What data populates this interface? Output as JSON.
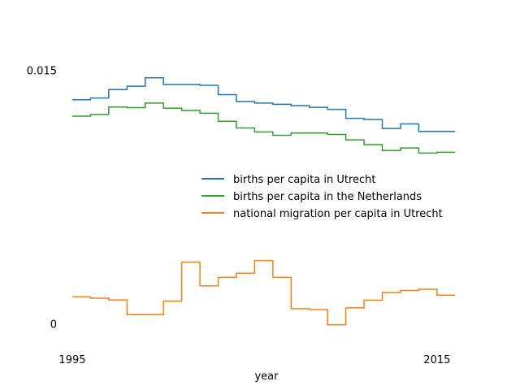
{
  "chart_data": {
    "type": "line",
    "step": "post",
    "xlabel": "year",
    "ylabel": "",
    "xlim": [
      1994.6,
      2016.7
    ],
    "ylim": [
      -0.00112,
      0.01636
    ],
    "x_ticks": [
      {
        "value": 1995,
        "label": "1995"
      },
      {
        "value": 2015,
        "label": "2015"
      }
    ],
    "y_ticks": [
      {
        "value": 0,
        "label": "0"
      },
      {
        "value": 0.015,
        "label": "0.015"
      }
    ],
    "grid": false,
    "legend_position": "center-right",
    "x": [
      1995,
      1996,
      1997,
      1998,
      1999,
      2000,
      2001,
      2002,
      2003,
      2004,
      2005,
      2006,
      2007,
      2008,
      2009,
      2010,
      2011,
      2012,
      2013,
      2014,
      2015,
      2016
    ],
    "series": [
      {
        "name": "births per capita in Utrecht",
        "color": "#1f77b4",
        "values": [
          0.01325,
          0.01335,
          0.01385,
          0.01405,
          0.01455,
          0.01415,
          0.01415,
          0.0141,
          0.01355,
          0.01315,
          0.01305,
          0.01298,
          0.0129,
          0.0128,
          0.01268,
          0.01215,
          0.01208,
          0.01155,
          0.01182,
          0.01138,
          0.01138,
          0.01138
        ]
      },
      {
        "name": "births per capita in the Netherlands",
        "color": "#2ca02c",
        "values": [
          0.01228,
          0.01238,
          0.01282,
          0.01278,
          0.01305,
          0.01275,
          0.01262,
          0.01245,
          0.01198,
          0.01158,
          0.01135,
          0.01115,
          0.01128,
          0.01128,
          0.0112,
          0.01088,
          0.0106,
          0.01025,
          0.0104,
          0.0101,
          0.01015,
          0.01015
        ]
      },
      {
        "name": "national migration per capita in Utrecht",
        "color": "#ff7f0e",
        "values": [
          0.0016,
          0.00152,
          0.00142,
          0.00055,
          0.00055,
          0.00135,
          0.00365,
          0.00225,
          0.00275,
          0.003,
          0.00375,
          0.00275,
          0.0009,
          0.00085,
          -5e-05,
          0.00095,
          0.0014,
          0.00185,
          0.00198,
          0.00205,
          0.0017,
          0.0017
        ]
      }
    ]
  }
}
